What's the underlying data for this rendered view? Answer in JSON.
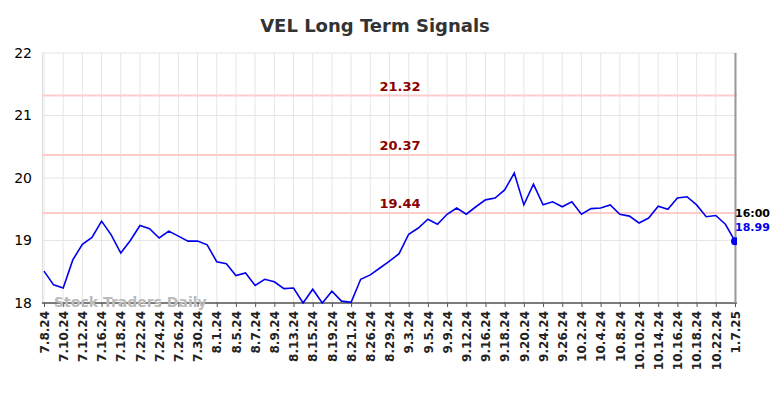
{
  "chart_data": {
    "type": "line",
    "title": "VEL Long Term Signals",
    "watermark": "Stock Traders Daily",
    "annotations": [
      "16:00"
    ],
    "levels": [
      19.44,
      20.37,
      21.32
    ],
    "categories": [
      "7.8.24",
      null,
      "7.10.24",
      null,
      "7.12.24",
      null,
      "7.16.24",
      null,
      "7.18.24",
      null,
      "7.22.24",
      null,
      "7.24.24",
      null,
      "7.26.24",
      null,
      "7.30.24",
      null,
      "8.1.24",
      null,
      "8.5.24",
      null,
      "8.7.24",
      null,
      "8.9.24",
      null,
      "8.13.24",
      null,
      "8.15.24",
      null,
      "8.19.24",
      null,
      "8.21.24",
      null,
      "8.26.24",
      null,
      "8.29.24",
      null,
      "9.3.24",
      null,
      "9.5.24",
      null,
      "9.9.24",
      null,
      "9.12.24",
      null,
      "9.16.24",
      null,
      "9.18.24",
      null,
      "9.20.24",
      null,
      "9.24.24",
      null,
      "9.26.24",
      null,
      "10.2.24",
      null,
      "10.4.24",
      null,
      "10.8.24",
      null,
      "10.10.24",
      null,
      "10.14.24",
      null,
      "10.16.24",
      null,
      "10.18.24",
      null,
      "10.22.24",
      null,
      "1.7.25"
    ],
    "series": [
      {
        "name": "VEL",
        "color": "#0000ee",
        "values": [
          18.51,
          18.29,
          18.24,
          18.69,
          18.94,
          19.05,
          19.31,
          19.09,
          18.8,
          19.0,
          19.24,
          19.19,
          19.04,
          19.15,
          19.07,
          18.99,
          18.99,
          18.93,
          18.66,
          18.63,
          18.44,
          18.48,
          18.28,
          18.38,
          18.34,
          18.23,
          18.24,
          18.0,
          18.22,
          18.0,
          18.19,
          18.03,
          18.01,
          18.38,
          18.45,
          18.56,
          18.67,
          18.79,
          19.1,
          19.2,
          19.34,
          19.26,
          19.42,
          19.52,
          19.42,
          19.54,
          19.65,
          19.68,
          19.81,
          20.08,
          19.57,
          19.9,
          19.57,
          19.62,
          19.54,
          19.62,
          19.42,
          19.51,
          19.52,
          19.57,
          19.42,
          19.39,
          19.28,
          19.36,
          19.55,
          19.5,
          19.68,
          19.7,
          19.57,
          19.38,
          19.4,
          19.26,
          18.99
        ]
      }
    ],
    "ylim": [
      18,
      22
    ],
    "yticks": [
      18,
      19,
      20,
      21,
      22
    ],
    "grid": true
  }
}
